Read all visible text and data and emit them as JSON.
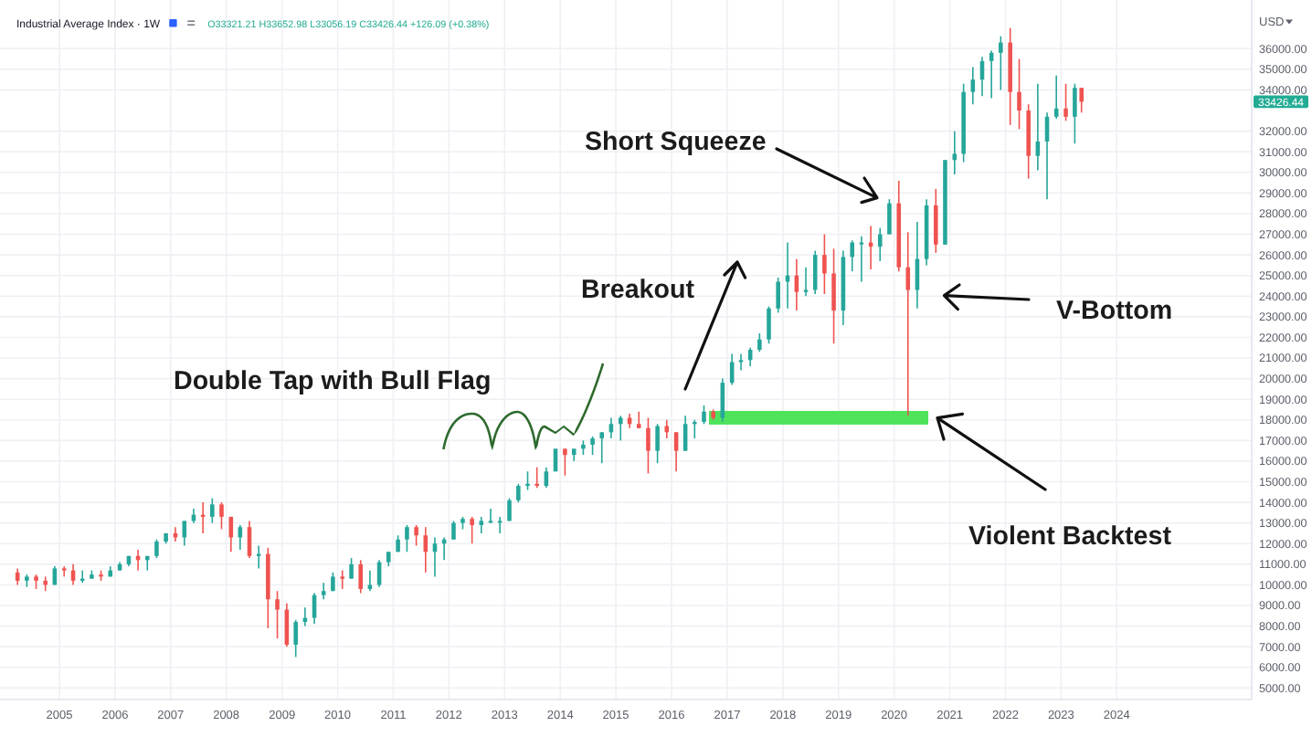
{
  "chart_data": {
    "type": "candlestick",
    "title": "Industrial Average Index · 1W",
    "subtitle": "O33321.21 H33652.98 L33056.19 C33426.44 +126.09 (+0.38%)",
    "ylabel": "USD",
    "x": [
      "2004-04-01",
      "2004-06-01",
      "2004-08-01",
      "2004-10-01",
      "2004-12-01",
      "2005-02-01",
      "2005-04-01",
      "2005-06-01",
      "2005-08-01",
      "2005-10-01",
      "2005-12-01",
      "2006-02-01",
      "2006-04-01",
      "2006-06-01",
      "2006-08-01",
      "2006-10-01",
      "2006-12-01",
      "2007-02-01",
      "2007-04-01",
      "2007-06-01",
      "2007-08-01",
      "2007-10-01",
      "2007-12-01",
      "2008-02-01",
      "2008-04-01",
      "2008-06-01",
      "2008-08-01",
      "2008-10-01",
      "2008-12-01",
      "2009-02-01",
      "2009-04-01",
      "2009-06-01",
      "2009-08-01",
      "2009-10-01",
      "2009-12-01",
      "2010-02-01",
      "2010-04-01",
      "2010-06-01",
      "2010-08-01",
      "2010-10-01",
      "2010-12-01",
      "2011-02-01",
      "2011-04-01",
      "2011-06-01",
      "2011-08-01",
      "2011-10-01",
      "2011-12-01",
      "2012-02-01",
      "2012-04-01",
      "2012-06-01",
      "2012-08-01",
      "2012-10-01",
      "2012-12-01",
      "2013-02-01",
      "2013-04-01",
      "2013-06-01",
      "2013-08-01",
      "2013-10-01",
      "2013-12-01",
      "2014-02-01",
      "2014-04-01",
      "2014-06-01",
      "2014-08-01",
      "2014-10-01",
      "2014-12-01",
      "2015-02-01",
      "2015-04-01",
      "2015-06-01",
      "2015-08-01",
      "2015-10-01",
      "2015-12-01",
      "2016-02-01",
      "2016-04-01",
      "2016-06-01",
      "2016-08-01",
      "2016-10-01",
      "2016-12-01",
      "2017-02-01",
      "2017-04-01",
      "2017-06-01",
      "2017-08-01",
      "2017-10-01",
      "2017-12-01",
      "2018-02-01",
      "2018-04-01",
      "2018-06-01",
      "2018-08-01",
      "2018-10-01",
      "2018-12-01",
      "2019-02-01",
      "2019-04-01",
      "2019-06-01",
      "2019-08-01",
      "2019-10-01",
      "2019-12-01",
      "2020-02-01",
      "2020-04-01",
      "2020-06-01",
      "2020-08-01",
      "2020-10-01",
      "2020-12-01",
      "2021-02-01",
      "2021-04-01",
      "2021-06-01",
      "2021-08-01",
      "2021-10-01",
      "2021-12-01",
      "2022-02-01",
      "2022-04-01",
      "2022-06-01",
      "2022-08-01",
      "2022-10-01",
      "2022-12-01",
      "2023-02-01",
      "2023-04-01",
      "2023-05-15"
    ],
    "ohlc": [
      [
        10600,
        10800,
        10000,
        10200
      ],
      [
        10200,
        10500,
        9900,
        10400
      ],
      [
        10400,
        10500,
        9800,
        10200
      ],
      [
        10200,
        10400,
        9700,
        10000
      ],
      [
        10000,
        10900,
        10000,
        10800
      ],
      [
        10800,
        10900,
        10400,
        10700
      ],
      [
        10700,
        11000,
        10000,
        10200
      ],
      [
        10200,
        10700,
        10100,
        10300
      ],
      [
        10300,
        10700,
        10300,
        10500
      ],
      [
        10500,
        10700,
        10200,
        10400
      ],
      [
        10400,
        10900,
        10400,
        10700
      ],
      [
        10700,
        11100,
        10700,
        11000
      ],
      [
        11000,
        11400,
        10900,
        11400
      ],
      [
        11400,
        11700,
        10700,
        11200
      ],
      [
        11200,
        11400,
        10700,
        11400
      ],
      [
        11400,
        12200,
        11300,
        12100
      ],
      [
        12100,
        12500,
        12000,
        12500
      ],
      [
        12500,
        12800,
        12100,
        12300
      ],
      [
        12300,
        13100,
        11900,
        13100
      ],
      [
        13100,
        13700,
        13000,
        13400
      ],
      [
        13400,
        14000,
        12500,
        13300
      ],
      [
        13300,
        14200,
        13000,
        13900
      ],
      [
        13900,
        14000,
        12700,
        13300
      ],
      [
        13300,
        13300,
        11600,
        12300
      ],
      [
        12300,
        12900,
        11700,
        12800
      ],
      [
        12800,
        13100,
        11300,
        11400
      ],
      [
        11400,
        11900,
        10800,
        11500
      ],
      [
        11500,
        11800,
        7900,
        9300
      ],
      [
        9300,
        9700,
        7400,
        8800
      ],
      [
        8800,
        9100,
        7000,
        7100
      ],
      [
        7100,
        8300,
        6500,
        8200
      ],
      [
        8200,
        8900,
        8000,
        8400
      ],
      [
        8400,
        9600,
        8100,
        9500
      ],
      [
        9500,
        10100,
        9300,
        9700
      ],
      [
        9700,
        10600,
        9700,
        10400
      ],
      [
        10400,
        10700,
        9800,
        10300
      ],
      [
        10300,
        11300,
        10300,
        11000
      ],
      [
        11000,
        11200,
        9600,
        9800
      ],
      [
        9800,
        10700,
        9700,
        10000
      ],
      [
        10000,
        11200,
        9900,
        11100
      ],
      [
        11100,
        11600,
        10900,
        11600
      ],
      [
        11600,
        12400,
        11600,
        12200
      ],
      [
        12200,
        12900,
        11600,
        12800
      ],
      [
        12800,
        12900,
        11900,
        12400
      ],
      [
        12400,
        12800,
        10600,
        11600
      ],
      [
        11600,
        12300,
        10400,
        12000
      ],
      [
        12000,
        12300,
        11200,
        12200
      ],
      [
        12200,
        13100,
        12200,
        13000
      ],
      [
        13000,
        13300,
        12700,
        13200
      ],
      [
        13200,
        13300,
        12000,
        12900
      ],
      [
        12900,
        13300,
        12500,
        13100
      ],
      [
        13100,
        13700,
        13000,
        13100
      ],
      [
        13100,
        13300,
        12500,
        13100
      ],
      [
        13100,
        14200,
        13100,
        14100
      ],
      [
        14100,
        14900,
        14000,
        14800
      ],
      [
        14800,
        15500,
        14600,
        14900
      ],
      [
        14900,
        15700,
        14700,
        14800
      ],
      [
        14800,
        15700,
        14700,
        15500
      ],
      [
        15500,
        16600,
        15500,
        16600
      ],
      [
        16600,
        16600,
        15300,
        16300
      ],
      [
        16300,
        16600,
        16000,
        16600
      ],
      [
        16600,
        17000,
        16300,
        16800
      ],
      [
        16800,
        17200,
        16300,
        17100
      ],
      [
        17100,
        17400,
        15900,
        17400
      ],
      [
        17400,
        18100,
        17100,
        17800
      ],
      [
        17800,
        18200,
        17000,
        18100
      ],
      [
        18100,
        18300,
        17600,
        17800
      ],
      [
        17800,
        18400,
        17600,
        17600
      ],
      [
        17600,
        18100,
        15400,
        16500
      ],
      [
        16500,
        17800,
        15900,
        17700
      ],
      [
        17700,
        18000,
        17100,
        17400
      ],
      [
        17400,
        17400,
        15500,
        16500
      ],
      [
        16500,
        18200,
        16500,
        17800
      ],
      [
        17800,
        18000,
        17100,
        17900
      ],
      [
        17900,
        18700,
        17800,
        18400
      ],
      [
        18400,
        18500,
        18000,
        18100
      ],
      [
        18100,
        20000,
        17900,
        19800
      ],
      [
        19800,
        21200,
        19700,
        20800
      ],
      [
        20800,
        21200,
        20400,
        20900
      ],
      [
        20900,
        21500,
        20600,
        21400
      ],
      [
        21400,
        22200,
        21300,
        21900
      ],
      [
        21900,
        23500,
        21700,
        23400
      ],
      [
        23400,
        24900,
        23200,
        24700
      ],
      [
        24700,
        26600,
        23400,
        25000
      ],
      [
        25000,
        25800,
        23300,
        24200
      ],
      [
        24200,
        25400,
        24000,
        24300
      ],
      [
        24300,
        26200,
        24100,
        26000
      ],
      [
        26000,
        27000,
        24100,
        25100
      ],
      [
        25100,
        26300,
        21700,
        23300
      ],
      [
        23300,
        26200,
        22600,
        25900
      ],
      [
        25900,
        26700,
        25200,
        26600
      ],
      [
        26600,
        26900,
        24700,
        26600
      ],
      [
        26600,
        27400,
        25300,
        26400
      ],
      [
        26400,
        27300,
        25700,
        27000
      ],
      [
        27000,
        28700,
        27000,
        28500
      ],
      [
        28500,
        29600,
        25200,
        25400
      ],
      [
        25400,
        27100,
        18200,
        24300
      ],
      [
        24300,
        27600,
        23400,
        25800
      ],
      [
        25800,
        28700,
        25500,
        28400
      ],
      [
        28400,
        29200,
        26100,
        26500
      ],
      [
        26500,
        30600,
        26500,
        30600
      ],
      [
        30600,
        32000,
        29900,
        30900
      ],
      [
        30900,
        34300,
        30500,
        33900
      ],
      [
        33900,
        35100,
        33300,
        34500
      ],
      [
        34500,
        35600,
        33700,
        35400
      ],
      [
        35400,
        35900,
        33600,
        35800
      ],
      [
        35800,
        36600,
        34000,
        36300
      ],
      [
        36300,
        37000,
        32300,
        33900
      ],
      [
        33900,
        35500,
        32100,
        33000
      ],
      [
        33000,
        33300,
        29700,
        30800
      ],
      [
        30800,
        34300,
        30100,
        31500
      ],
      [
        31500,
        32900,
        28700,
        32700
      ],
      [
        32700,
        34700,
        32600,
        33100
      ],
      [
        33100,
        34300,
        32500,
        32700
      ],
      [
        32700,
        34300,
        31400,
        34100
      ],
      [
        34100,
        34100,
        32900,
        33426.44
      ]
    ],
    "colors": [
      "#ef5350",
      "#26a69a",
      "#ef5350",
      "#ef5350",
      "#26a69a",
      "#ef5350",
      "#ef5350",
      "#26a69a",
      "#26a69a",
      "#ef5350",
      "#26a69a",
      "#26a69a",
      "#26a69a",
      "#ef5350",
      "#26a69a",
      "#26a69a",
      "#26a69a",
      "#ef5350",
      "#26a69a",
      "#26a69a",
      "#ef5350",
      "#26a69a",
      "#ef5350",
      "#ef5350",
      "#26a69a",
      "#ef5350",
      "#26a69a",
      "#ef5350",
      "#ef5350",
      "#ef5350",
      "#26a69a",
      "#26a69a",
      "#26a69a",
      "#26a69a",
      "#26a69a",
      "#ef5350",
      "#26a69a",
      "#ef5350",
      "#26a69a",
      "#26a69a",
      "#26a69a",
      "#26a69a",
      "#26a69a",
      "#ef5350",
      "#ef5350",
      "#26a69a",
      "#26a69a",
      "#26a69a",
      "#26a69a",
      "#ef5350",
      "#26a69a",
      "#26a69a",
      "#26a69a",
      "#26a69a",
      "#26a69a",
      "#26a69a",
      "#ef5350",
      "#26a69a",
      "#26a69a",
      "#ef5350",
      "#26a69a",
      "#26a69a",
      "#26a69a",
      "#26a69a",
      "#26a69a",
      "#26a69a",
      "#ef5350",
      "#ef5350",
      "#ef5350",
      "#26a69a",
      "#ef5350",
      "#ef5350",
      "#26a69a",
      "#26a69a",
      "#26a69a",
      "#ef5350",
      "#26a69a",
      "#26a69a",
      "#26a69a",
      "#26a69a",
      "#26a69a",
      "#26a69a",
      "#26a69a",
      "#26a69a",
      "#ef5350",
      "#26a69a",
      "#26a69a",
      "#ef5350",
      "#ef5350",
      "#26a69a",
      "#26a69a",
      "#26a69a",
      "#ef5350",
      "#26a69a",
      "#26a69a",
      "#ef5350",
      "#ef5350",
      "#26a69a",
      "#26a69a",
      "#ef5350",
      "#26a69a",
      "#26a69a",
      "#26a69a",
      "#26a69a",
      "#26a69a",
      "#26a69a",
      "#26a69a",
      "#ef5350",
      "#ef5350",
      "#ef5350",
      "#26a69a",
      "#26a69a",
      "#26a69a",
      "#ef5350",
      "#26a69a",
      "#ef5350"
    ],
    "xlim": [
      "2003-12-08",
      "2026-06-05"
    ],
    "ylim": [
      4440,
      38360
    ],
    "xticks": [
      "2005",
      "2006",
      "2007",
      "2008",
      "2009",
      "2010",
      "2011",
      "2012",
      "2013",
      "2014",
      "2015",
      "2016",
      "2017",
      "2018",
      "2019",
      "2020",
      "2021",
      "2022",
      "2023",
      "2024"
    ],
    "yticks": [
      {
        "value": 5000,
        "label": "5000.00"
      },
      {
        "value": 6000,
        "label": "6000.00"
      },
      {
        "value": 7000,
        "label": "7000.00"
      },
      {
        "value": 8000,
        "label": "8000.00"
      },
      {
        "value": 9000,
        "label": "9000.00"
      },
      {
        "value": 10000,
        "label": "10000.00"
      },
      {
        "value": 11000,
        "label": "11000.00"
      },
      {
        "value": 12000,
        "label": "12000.00"
      },
      {
        "value": 13000,
        "label": "13000.00"
      },
      {
        "value": 14000,
        "label": "14000.00"
      },
      {
        "value": 15000,
        "label": "15000.00"
      },
      {
        "value": 16000,
        "label": "16000.00"
      },
      {
        "value": 17000,
        "label": "17000.00"
      },
      {
        "value": 18000,
        "label": "18000.00"
      },
      {
        "value": 19000,
        "label": "19000.00"
      },
      {
        "value": 20000,
        "label": "20000.00"
      },
      {
        "value": 21000,
        "label": "21000.00"
      },
      {
        "value": 22000,
        "label": "22000.00"
      },
      {
        "value": 23000,
        "label": "23000.00"
      },
      {
        "value": 24000,
        "label": "24000.00"
      },
      {
        "value": 25000,
        "label": "25000.00"
      },
      {
        "value": 26000,
        "label": "26000.00"
      },
      {
        "value": 27000,
        "label": "27000.00"
      },
      {
        "value": 28000,
        "label": "28000.00"
      },
      {
        "value": 29000,
        "label": "29000.00"
      },
      {
        "value": 30000,
        "label": "30000.00"
      },
      {
        "value": 31000,
        "label": "31000.00"
      },
      {
        "value": 32000,
        "label": "32000.00"
      },
      {
        "value": 34000,
        "label": "34000.00"
      },
      {
        "value": 35000,
        "label": "35000.00"
      },
      {
        "value": 36000,
        "label": "36000.00"
      }
    ],
    "grid": true,
    "annotations": [
      "Double Tap with Bull Flag",
      "Breakout",
      "Short Squeeze",
      "V-Bottom",
      "Violent Backtest",
      "33426.44"
    ]
  }
}
